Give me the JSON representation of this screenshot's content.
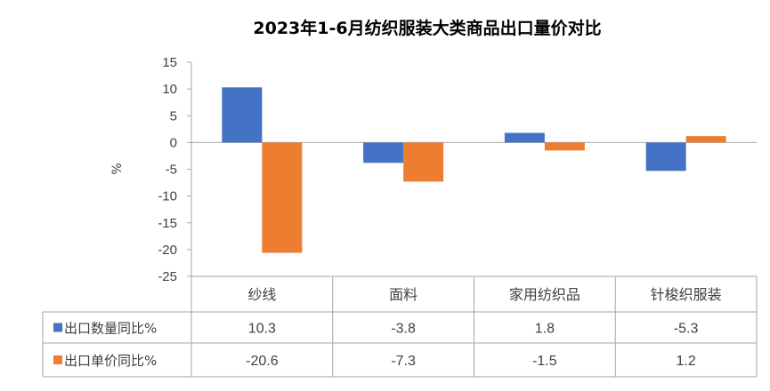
{
  "chart_data": {
    "type": "bar",
    "title": "2023年1-6月纺织服装大类商品出口量价对比",
    "ylabel": "%",
    "categories": [
      "纱线",
      "面料",
      "家用纺织品",
      "针梭织服装"
    ],
    "series": [
      {
        "name": "出口数量同比%",
        "color": "#4472C4",
        "values": [
          10.3,
          -3.8,
          1.8,
          -5.3
        ]
      },
      {
        "name": "出口单价同比%",
        "color": "#ED7D31",
        "values": [
          -20.6,
          -7.3,
          -1.5,
          1.2
        ]
      }
    ],
    "ylim": [
      -25,
      15
    ],
    "yticks": [
      15,
      10,
      5,
      0,
      -5,
      -10,
      -15,
      -20,
      -25
    ],
    "grid": false,
    "data_table": true
  }
}
